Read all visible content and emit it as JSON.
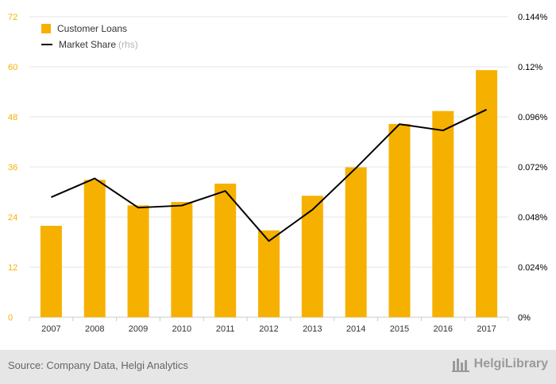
{
  "chart_data": {
    "type": "bar",
    "categories": [
      "2007",
      "2008",
      "2009",
      "2010",
      "2011",
      "2012",
      "2013",
      "2014",
      "2015",
      "2016",
      "2017"
    ],
    "series": [
      {
        "name": "Customer Loans",
        "type": "bar",
        "axis": "left",
        "values": [
          21.9,
          32.9,
          26.8,
          27.6,
          32.0,
          20.8,
          29.1,
          35.9,
          46.3,
          49.4,
          59.2
        ]
      },
      {
        "name": "Market Share",
        "type": "line",
        "axis": "right",
        "values": [
          0.0575,
          0.0665,
          0.0525,
          0.0535,
          0.0605,
          0.0365,
          0.0515,
          0.0715,
          0.0925,
          0.0895,
          0.0995
        ]
      }
    ],
    "y_left": {
      "min": 0,
      "max": 72,
      "ticks": [
        "0",
        "12",
        "24",
        "36",
        "48",
        "60",
        "72"
      ]
    },
    "y_right": {
      "min": 0,
      "max": 0.144,
      "ticks": [
        "0%",
        "0.024%",
        "0.048%",
        "0.072%",
        "0.096%",
        "0.12%",
        "0.144%"
      ]
    },
    "grid": true,
    "legend_position": "top-left",
    "colors": {
      "bar": "#f6b100",
      "line": "#000000",
      "left_tick": "#f6b100",
      "right_tick": "#000000",
      "grid": "#e5e5e5"
    }
  },
  "legend": {
    "loans_label": "Customer Loans",
    "share_label": "Market Share",
    "share_suffix": "(rhs)"
  },
  "footer": {
    "source": "Source: Company Data, Helgi Analytics",
    "logo_text": "HelgiLibrary"
  }
}
